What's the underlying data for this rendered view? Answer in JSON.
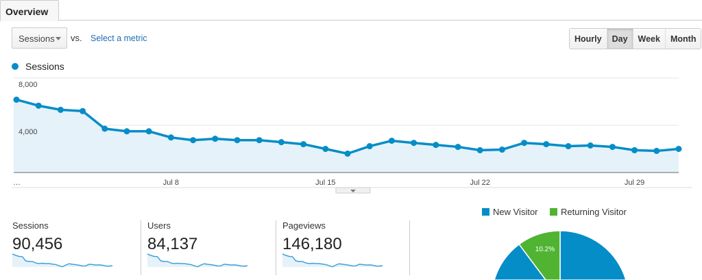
{
  "tabs": [
    {
      "label": "Overview"
    }
  ],
  "toolbar": {
    "metric_select": "Sessions",
    "vs_label": "vs.",
    "select_metric_link": "Select a metric",
    "granularity": [
      {
        "label": "Hourly"
      },
      {
        "label": "Day",
        "active": true
      },
      {
        "label": "Week"
      },
      {
        "label": "Month"
      }
    ]
  },
  "colors": {
    "line": "#058dc7",
    "fill": "#e5f2fa",
    "returning": "#50b432"
  },
  "chart_data": [
    {
      "type": "line",
      "legend": "Sessions",
      "y_ticks": [
        "8,000",
        "4,000"
      ],
      "y_tick_values": [
        8000,
        4000
      ],
      "ylim": [
        0,
        8000
      ],
      "x_tick_labels": [
        "…",
        "Jul 8",
        "Jul 15",
        "Jul 22",
        "Jul 29"
      ],
      "x_tick_index": [
        0,
        7,
        14,
        21,
        28
      ],
      "x": [
        "Jul 1",
        "Jul 2",
        "Jul 3",
        "Jul 4",
        "Jul 5",
        "Jul 6",
        "Jul 7",
        "Jul 8",
        "Jul 9",
        "Jul 10",
        "Jul 11",
        "Jul 12",
        "Jul 13",
        "Jul 14",
        "Jul 15",
        "Jul 16",
        "Jul 17",
        "Jul 18",
        "Jul 19",
        "Jul 20",
        "Jul 21",
        "Jul 22",
        "Jul 23",
        "Jul 24",
        "Jul 25",
        "Jul 26",
        "Jul 27",
        "Jul 28",
        "Jul 29",
        "Jul 30",
        "Jul 31"
      ],
      "values": [
        6170,
        5660,
        5310,
        5200,
        3710,
        3490,
        3490,
        2970,
        2740,
        2860,
        2740,
        2740,
        2570,
        2400,
        2000,
        1600,
        2230,
        2690,
        2510,
        2340,
        2170,
        1890,
        1940,
        2510,
        2400,
        2230,
        2290,
        2170,
        1890,
        1830,
        2000
      ]
    },
    {
      "type": "pie",
      "legend": [
        {
          "label": "New Visitor",
          "color": "#058dc7"
        },
        {
          "label": "Returning Visitor",
          "color": "#50b432"
        }
      ],
      "values": [
        89.8,
        10.2
      ],
      "data_labels": [
        "",
        "10.2%"
      ]
    }
  ],
  "metrics": [
    {
      "label": "Sessions",
      "value": "90,456"
    },
    {
      "label": "Users",
      "value": "84,137"
    },
    {
      "label": "Pageviews",
      "value": "146,180"
    }
  ]
}
